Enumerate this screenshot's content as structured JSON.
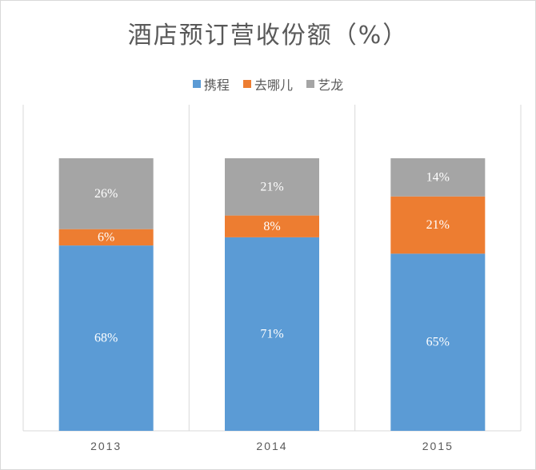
{
  "chart_data": {
    "type": "bar",
    "stacked": true,
    "title": "酒店预订营收份额（%）",
    "categories": [
      "2013",
      "2014",
      "2015"
    ],
    "series": [
      {
        "name": "携程",
        "values": [
          68,
          71,
          65
        ],
        "labels": [
          "68%",
          "71%",
          "65%"
        ],
        "color": "#5b9bd5"
      },
      {
        "name": "去哪儿",
        "values": [
          6,
          8,
          21
        ],
        "labels": [
          "6%",
          "8%",
          "21%"
        ],
        "color": "#ed7d31"
      },
      {
        "name": "艺龙",
        "values": [
          26,
          21,
          14
        ],
        "labels": [
          "26%",
          "21%",
          "14%"
        ],
        "color": "#a5a5a5"
      }
    ],
    "ylim": [
      0,
      100
    ],
    "legend_position": "top",
    "grid": "vertical separators between categories"
  }
}
